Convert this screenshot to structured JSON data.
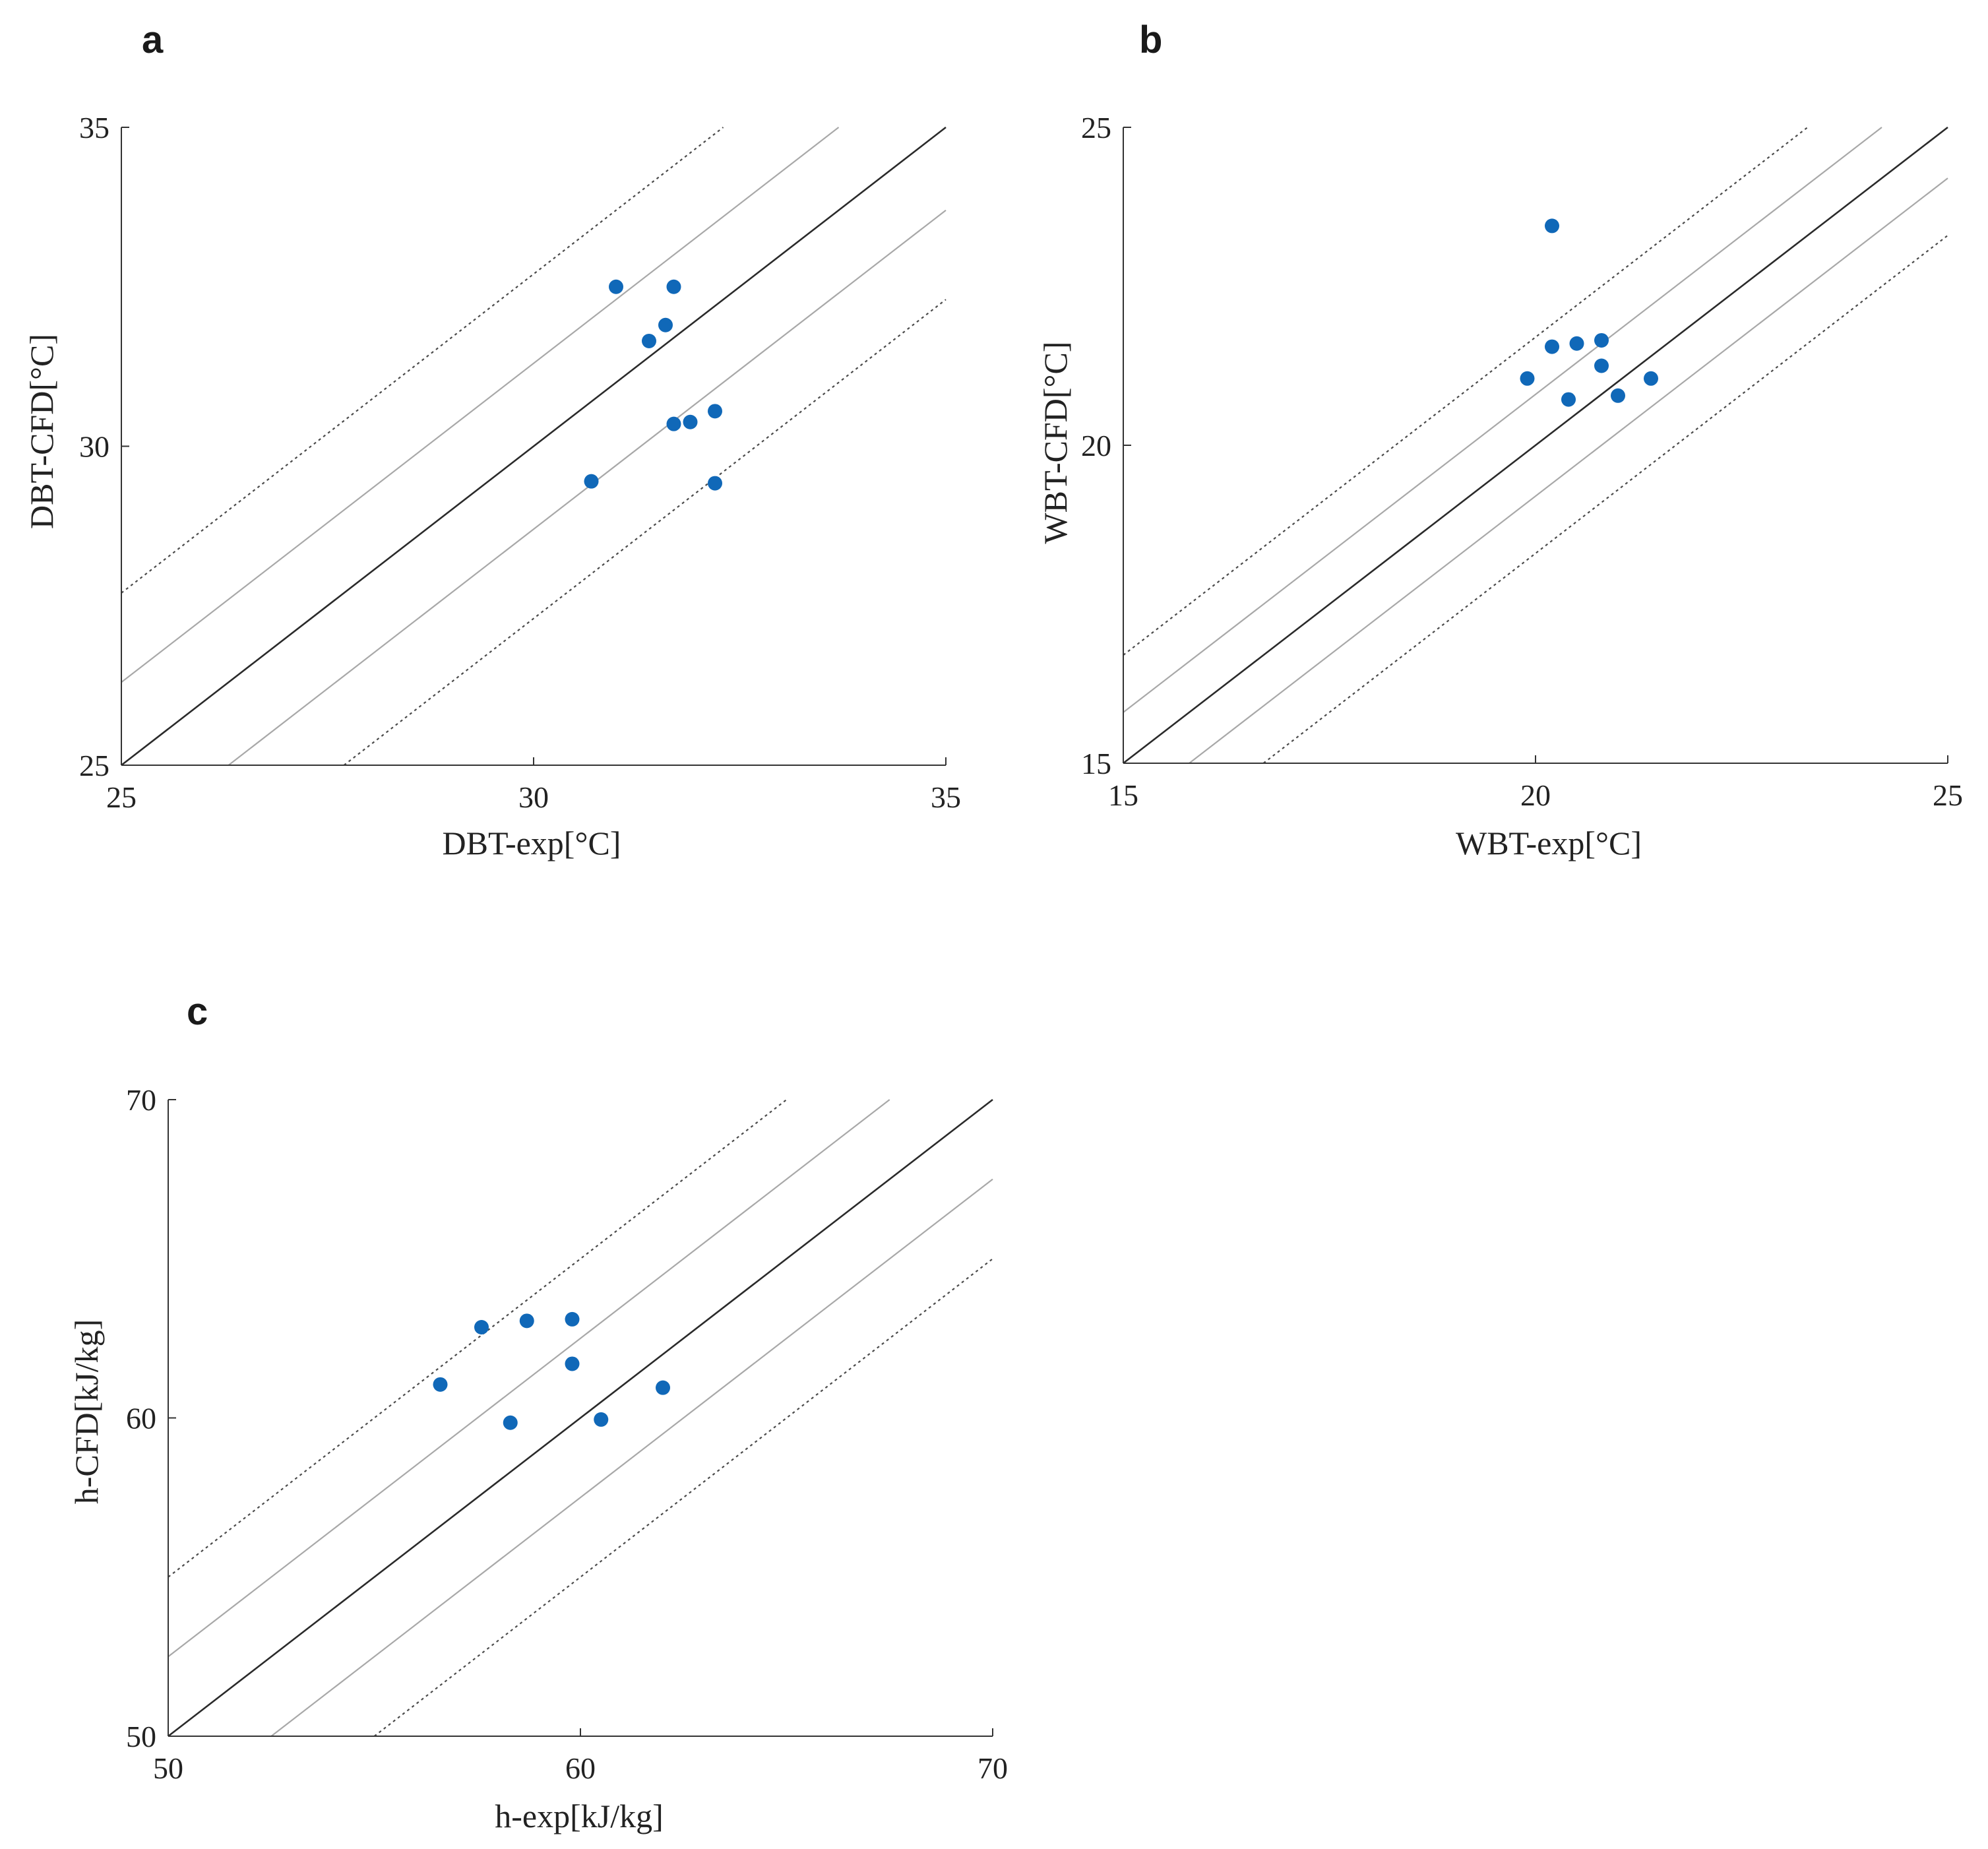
{
  "figure": {
    "colors": {
      "point": "#1068b8",
      "identity_line": "#2a2a2a",
      "inner_band": "#a8a8a8",
      "outer_band": "#4a4a4a",
      "axis": "#333333"
    }
  },
  "chart_data": [
    {
      "panel": "a",
      "type": "scatter",
      "xlabel": "DBT-exp[°C]",
      "ylabel": "DBT-CFD[°C]",
      "xlim": [
        25,
        35
      ],
      "ylim": [
        25,
        35
      ],
      "xticks": [
        25,
        30,
        35
      ],
      "yticks": [
        25,
        30,
        35
      ],
      "reference_lines": [
        {
          "offset": 0,
          "style": "identity"
        },
        {
          "offset": 1.3,
          "style": "inner"
        },
        {
          "offset": -1.3,
          "style": "inner"
        },
        {
          "offset": 2.7,
          "style": "outer-dotted"
        },
        {
          "offset": -2.7,
          "style": "outer-dotted"
        }
      ],
      "points": [
        {
          "x": 31.0,
          "y": 32.5
        },
        {
          "x": 31.7,
          "y": 32.5
        },
        {
          "x": 31.6,
          "y": 31.9
        },
        {
          "x": 31.4,
          "y": 31.65
        },
        {
          "x": 31.7,
          "y": 30.35
        },
        {
          "x": 31.9,
          "y": 30.38
        },
        {
          "x": 32.2,
          "y": 30.55
        },
        {
          "x": 30.7,
          "y": 29.45
        },
        {
          "x": 32.2,
          "y": 29.42
        }
      ]
    },
    {
      "panel": "b",
      "type": "scatter",
      "xlabel": "WBT-exp[°C]",
      "ylabel": "WBT-CFD[°C]",
      "xlim": [
        15,
        25
      ],
      "ylim": [
        15,
        25
      ],
      "xticks": [
        15,
        20,
        25
      ],
      "yticks": [
        15,
        20,
        25
      ],
      "reference_lines": [
        {
          "offset": 0,
          "style": "identity"
        },
        {
          "offset": 0.8,
          "style": "inner"
        },
        {
          "offset": -0.8,
          "style": "inner"
        },
        {
          "offset": 1.7,
          "style": "outer-dotted"
        },
        {
          "offset": -1.7,
          "style": "outer-dotted"
        }
      ],
      "points": [
        {
          "x": 20.2,
          "y": 23.45
        },
        {
          "x": 20.2,
          "y": 21.55
        },
        {
          "x": 20.5,
          "y": 21.6
        },
        {
          "x": 20.8,
          "y": 21.65
        },
        {
          "x": 19.9,
          "y": 21.05
        },
        {
          "x": 20.8,
          "y": 21.25
        },
        {
          "x": 21.4,
          "y": 21.05
        },
        {
          "x": 20.4,
          "y": 20.72
        },
        {
          "x": 21.0,
          "y": 20.78
        }
      ]
    },
    {
      "panel": "c",
      "type": "scatter",
      "xlabel": "h-exp[kJ/kg]",
      "ylabel": "h-CFD[kJ/kg]",
      "xlim": [
        50,
        70
      ],
      "ylim": [
        50,
        70
      ],
      "xticks": [
        50,
        60,
        70
      ],
      "yticks": [
        50,
        60,
        70
      ],
      "reference_lines": [
        {
          "offset": 0,
          "style": "identity"
        },
        {
          "offset": 2.5,
          "style": "inner"
        },
        {
          "offset": -2.5,
          "style": "inner"
        },
        {
          "offset": 5.0,
          "style": "outer-dotted"
        },
        {
          "offset": -5.0,
          "style": "outer-dotted"
        }
      ],
      "points": [
        {
          "x": 56.6,
          "y": 61.05
        },
        {
          "x": 57.6,
          "y": 62.85
        },
        {
          "x": 58.7,
          "y": 63.05
        },
        {
          "x": 59.8,
          "y": 63.1
        },
        {
          "x": 59.8,
          "y": 61.7
        },
        {
          "x": 62.0,
          "y": 60.95
        },
        {
          "x": 58.3,
          "y": 59.85
        },
        {
          "x": 60.5,
          "y": 59.95
        }
      ]
    }
  ]
}
